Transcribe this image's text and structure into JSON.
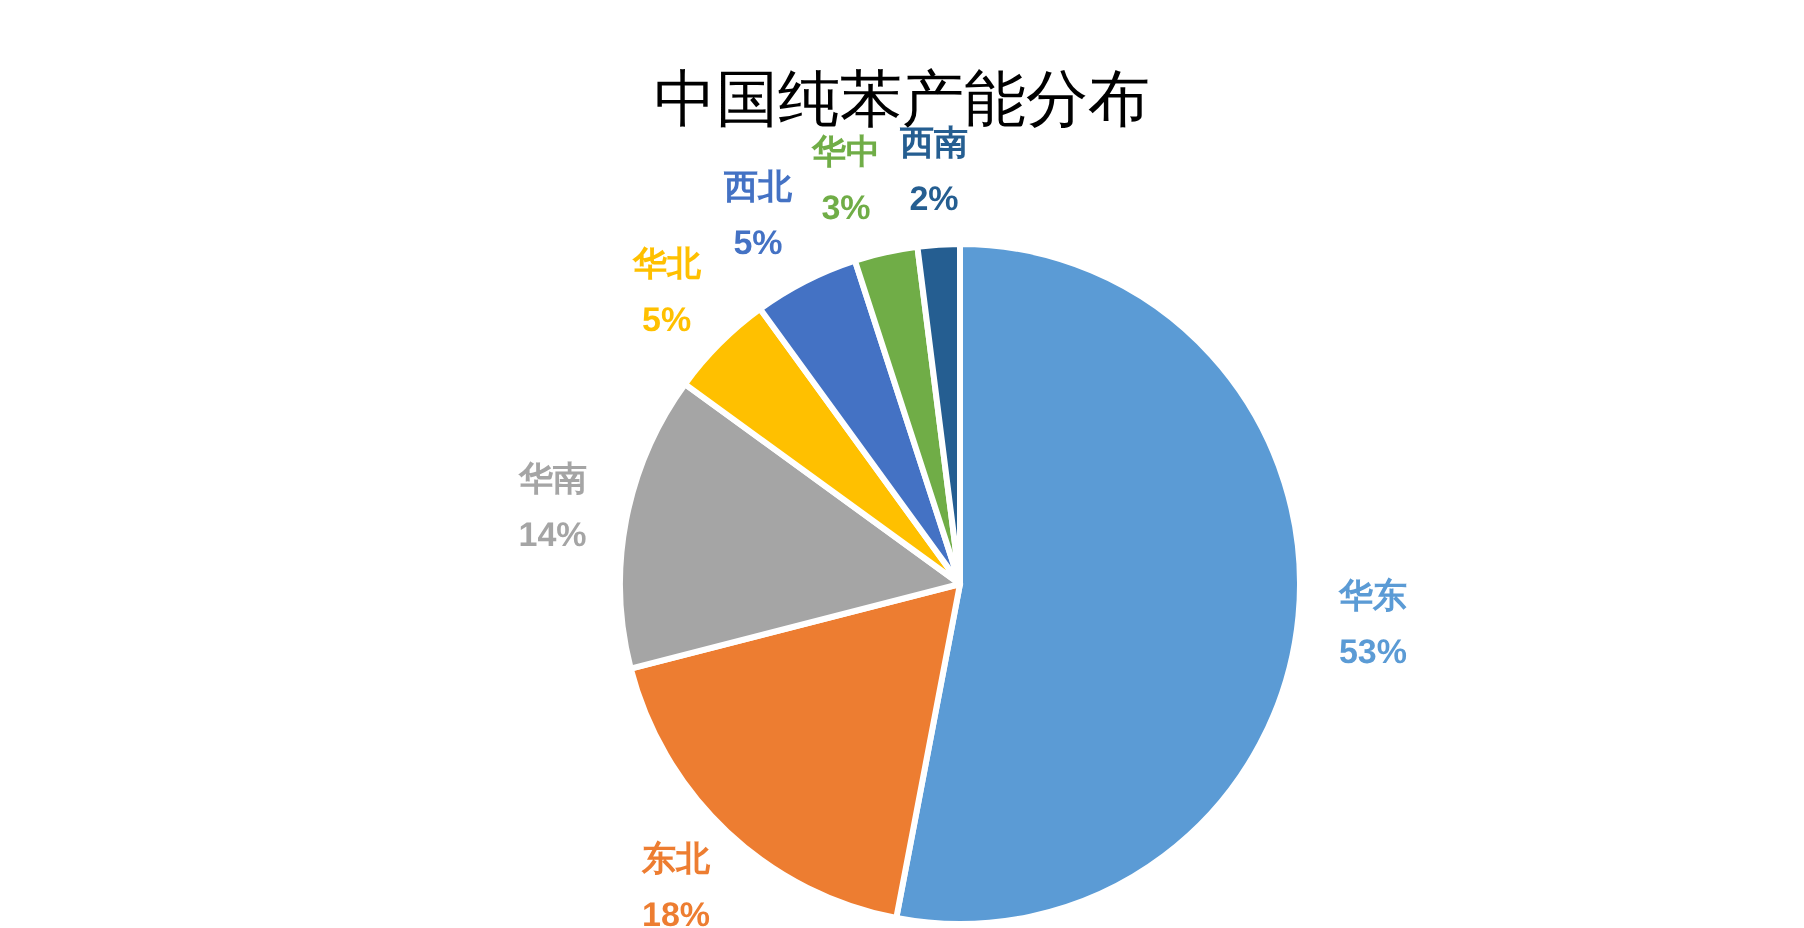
{
  "chart_data": {
    "type": "pie",
    "title": "中国纯苯产能分布",
    "categories": [
      "华东",
      "东北",
      "华南",
      "华北",
      "西北",
      "华中",
      "西南"
    ],
    "values": [
      53,
      18,
      14,
      5,
      5,
      3,
      2
    ],
    "value_labels": [
      "53%",
      "18%",
      "14%",
      "5%",
      "5%",
      "3%",
      "2%"
    ],
    "colors": [
      "#5b9bd5",
      "#ed7d31",
      "#a5a5a5",
      "#ffc000",
      "#4472c4",
      "#70ad47",
      "#255e91"
    ]
  }
}
